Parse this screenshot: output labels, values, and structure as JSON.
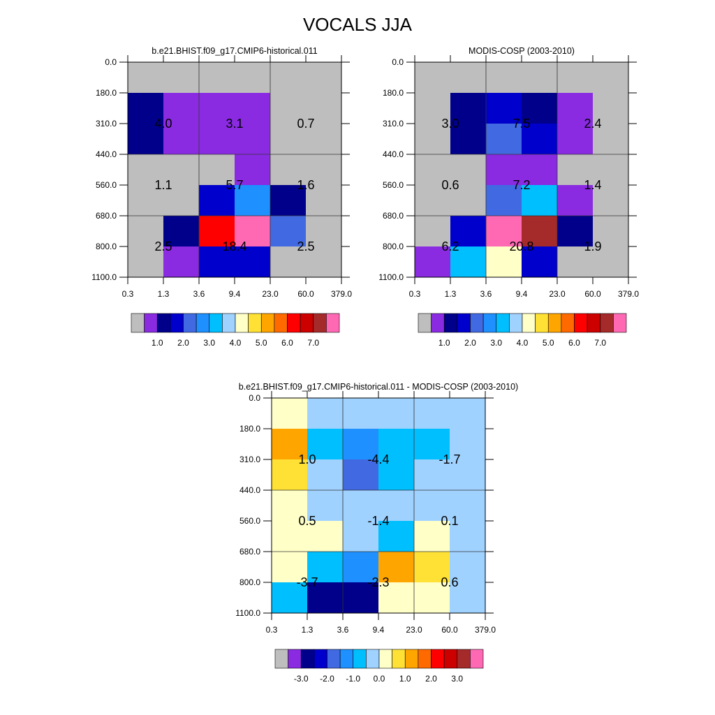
{
  "figure_title": "VOCALS JJA",
  "colors": {
    "palette": [
      "#bebebe",
      "#8a2be2",
      "#00008b",
      "#0000cd",
      "#4169e1",
      "#1e90ff",
      "#00bfff",
      "#a0d2ff",
      "#ffffc8",
      "#ffe135",
      "#ffa500",
      "#ff6a00",
      "#ff0000",
      "#cd0000",
      "#a52a2a",
      "#ff69b4"
    ]
  },
  "chart_data": [
    {
      "type": "heatmap",
      "title": "b.e21.BHIST.f09_g17.CMIP6-historical.011",
      "x_edges": [
        "0.3",
        "1.3",
        "3.6",
        "9.4",
        "23.0",
        "60.0",
        "379.0"
      ],
      "y_edges": [
        "0.0",
        "180.0",
        "310.0",
        "440.0",
        "560.0",
        "680.0",
        "800.0",
        "1100.0"
      ],
      "cell_color_index": [
        [
          0,
          0,
          0,
          0,
          0,
          0
        ],
        [
          2,
          1,
          1,
          1,
          0,
          0
        ],
        [
          2,
          1,
          1,
          1,
          0,
          0
        ],
        [
          0,
          0,
          0,
          1,
          0,
          0
        ],
        [
          0,
          0,
          3,
          5,
          2,
          0
        ],
        [
          0,
          2,
          12,
          15,
          4,
          0
        ],
        [
          0,
          1,
          3,
          3,
          0,
          0
        ]
      ],
      "box_values": [
        [
          "4.0",
          "3.1",
          "0.7"
        ],
        [
          "1.1",
          "5.7",
          "1.6"
        ],
        [
          "2.5",
          "18.4",
          "2.5"
        ]
      ],
      "colorbar": {
        "color_indices": [
          0,
          1,
          2,
          3,
          4,
          5,
          6,
          7,
          8,
          9,
          10,
          11,
          12,
          13,
          14,
          15
        ],
        "labels": [
          "1.0",
          "2.0",
          "3.0",
          "4.0",
          "5.0",
          "6.0",
          "7.0"
        ],
        "label_after_box": [
          2,
          4,
          6,
          8,
          10,
          12,
          14
        ]
      }
    },
    {
      "type": "heatmap",
      "title": "MODIS-COSP (2003-2010)",
      "x_edges": [
        "0.3",
        "1.3",
        "3.6",
        "9.4",
        "23.0",
        "60.0",
        "379.0"
      ],
      "y_edges": [
        "0.0",
        "180.0",
        "310.0",
        "440.0",
        "560.0",
        "680.0",
        "800.0",
        "1100.0"
      ],
      "cell_color_index": [
        [
          0,
          0,
          0,
          0,
          0,
          0
        ],
        [
          0,
          2,
          3,
          2,
          1,
          0
        ],
        [
          0,
          2,
          4,
          3,
          1,
          0
        ],
        [
          0,
          0,
          1,
          1,
          0,
          0
        ],
        [
          0,
          0,
          4,
          6,
          1,
          0
        ],
        [
          0,
          3,
          15,
          14,
          2,
          0
        ],
        [
          1,
          6,
          8,
          3,
          0,
          0
        ]
      ],
      "box_values": [
        [
          "3.0",
          "7.5",
          "2.4"
        ],
        [
          "0.6",
          "7.2",
          "1.4"
        ],
        [
          "6.2",
          "20.8",
          "1.9"
        ]
      ],
      "colorbar": {
        "color_indices": [
          0,
          1,
          2,
          3,
          4,
          5,
          6,
          7,
          8,
          9,
          10,
          11,
          12,
          13,
          14,
          15
        ],
        "labels": [
          "1.0",
          "2.0",
          "3.0",
          "4.0",
          "5.0",
          "6.0",
          "7.0"
        ],
        "label_after_box": [
          2,
          4,
          6,
          8,
          10,
          12,
          14
        ]
      }
    },
    {
      "type": "heatmap",
      "title": "b.e21.BHIST.f09_g17.CMIP6-historical.011 - MODIS-COSP (2003-2010)",
      "x_edges": [
        "0.3",
        "1.3",
        "3.6",
        "9.4",
        "23.0",
        "60.0",
        "379.0"
      ],
      "y_edges": [
        "0.0",
        "180.0",
        "310.0",
        "440.0",
        "560.0",
        "680.0",
        "800.0",
        "1100.0"
      ],
      "cell_color_index": [
        [
          8,
          7,
          7,
          7,
          7,
          7
        ],
        [
          10,
          6,
          5,
          6,
          6,
          7
        ],
        [
          9,
          7,
          4,
          6,
          7,
          7
        ],
        [
          8,
          7,
          7,
          7,
          7,
          7
        ],
        [
          8,
          8,
          7,
          6,
          8,
          7
        ],
        [
          8,
          6,
          5,
          10,
          9,
          7
        ],
        [
          6,
          2,
          2,
          8,
          8,
          7
        ]
      ],
      "box_values": [
        [
          "1.0",
          "-4.4",
          "-1.7"
        ],
        [
          "0.5",
          "-1.4",
          "0.1"
        ],
        [
          "-3.7",
          "-2.3",
          "0.6"
        ]
      ],
      "colorbar": {
        "color_indices": [
          0,
          1,
          2,
          3,
          4,
          5,
          6,
          7,
          8,
          9,
          10,
          11,
          12,
          13,
          14,
          15
        ],
        "labels": [
          "-3.0",
          "-2.0",
          "-1.0",
          "0.0",
          "1.0",
          "2.0",
          "3.0"
        ],
        "label_after_box": [
          2,
          4,
          6,
          8,
          10,
          12,
          14
        ]
      }
    }
  ]
}
